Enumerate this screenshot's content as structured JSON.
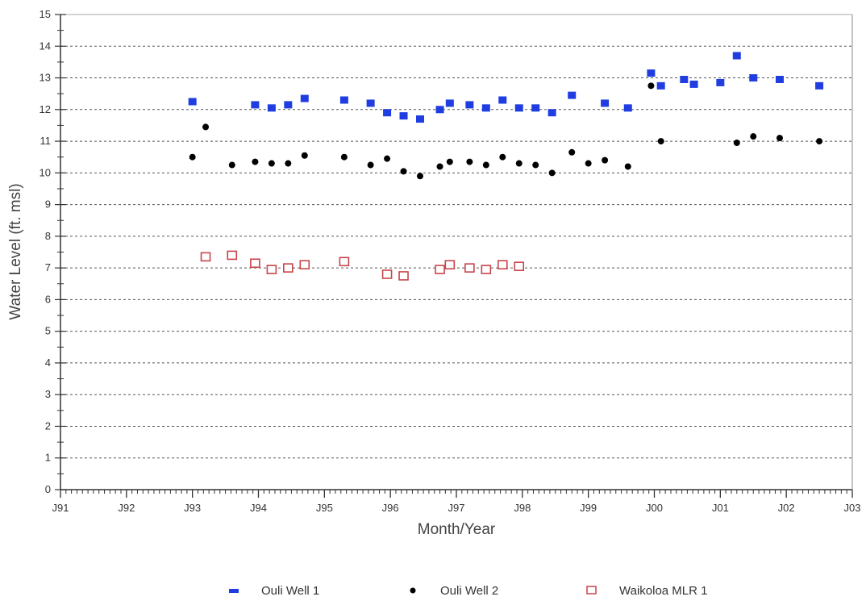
{
  "chart_data": {
    "type": "scatter",
    "title": "",
    "xlabel": "Month/Year",
    "ylabel": "Water Level (ft. msl)",
    "ylim": [
      0,
      15
    ],
    "yticks": [
      0,
      1,
      2,
      3,
      4,
      5,
      6,
      7,
      8,
      9,
      10,
      11,
      12,
      13,
      14,
      15
    ],
    "xlim": [
      1991.0,
      2003.0
    ],
    "xticks": [
      {
        "value": 1991,
        "label": "J91"
      },
      {
        "value": 1992,
        "label": "J92"
      },
      {
        "value": 1993,
        "label": "J93"
      },
      {
        "value": 1994,
        "label": "J94"
      },
      {
        "value": 1995,
        "label": "J95"
      },
      {
        "value": 1996,
        "label": "J96"
      },
      {
        "value": 1997,
        "label": "J97"
      },
      {
        "value": 1998,
        "label": "J98"
      },
      {
        "value": 1999,
        "label": "J99"
      },
      {
        "value": 2000,
        "label": "J00"
      },
      {
        "value": 2001,
        "label": "J01"
      },
      {
        "value": 2002,
        "label": "J02"
      },
      {
        "value": 2003,
        "label": "J03"
      }
    ],
    "grid": "horizontal dotted",
    "legend_position": "bottom",
    "series": [
      {
        "name": "Ouli Well 1",
        "marker": "filled-square",
        "color": "#1f3de0",
        "points": [
          [
            1993.0,
            12.25
          ],
          [
            1993.95,
            12.15
          ],
          [
            1994.2,
            12.05
          ],
          [
            1994.45,
            12.15
          ],
          [
            1994.7,
            12.35
          ],
          [
            1995.3,
            12.3
          ],
          [
            1995.7,
            12.2
          ],
          [
            1995.95,
            11.9
          ],
          [
            1996.2,
            11.8
          ],
          [
            1996.45,
            11.7
          ],
          [
            1996.75,
            12.0
          ],
          [
            1996.9,
            12.2
          ],
          [
            1997.2,
            12.15
          ],
          [
            1997.45,
            12.05
          ],
          [
            1997.7,
            12.3
          ],
          [
            1997.95,
            12.05
          ],
          [
            1998.2,
            12.05
          ],
          [
            1998.45,
            11.9
          ],
          [
            1998.75,
            12.45
          ],
          [
            1999.25,
            12.2
          ],
          [
            1999.6,
            12.05
          ],
          [
            1999.95,
            13.15
          ],
          [
            2000.1,
            12.75
          ],
          [
            2000.45,
            12.95
          ],
          [
            2000.6,
            12.8
          ],
          [
            2001.0,
            12.85
          ],
          [
            2001.25,
            13.7
          ],
          [
            2001.5,
            13.0
          ],
          [
            2001.9,
            12.95
          ],
          [
            2002.5,
            12.75
          ]
        ]
      },
      {
        "name": "Ouli Well 2",
        "marker": "filled-circle",
        "color": "#000000",
        "points": [
          [
            1993.0,
            10.5
          ],
          [
            1993.2,
            11.45
          ],
          [
            1993.6,
            10.25
          ],
          [
            1993.95,
            10.35
          ],
          [
            1994.2,
            10.3
          ],
          [
            1994.45,
            10.3
          ],
          [
            1994.7,
            10.55
          ],
          [
            1995.3,
            10.5
          ],
          [
            1995.7,
            10.25
          ],
          [
            1995.95,
            10.45
          ],
          [
            1996.2,
            10.05
          ],
          [
            1996.45,
            9.9
          ],
          [
            1996.75,
            10.2
          ],
          [
            1996.9,
            10.35
          ],
          [
            1997.2,
            10.35
          ],
          [
            1997.45,
            10.25
          ],
          [
            1997.7,
            10.5
          ],
          [
            1997.95,
            10.3
          ],
          [
            1998.2,
            10.25
          ],
          [
            1998.45,
            10.0
          ],
          [
            1998.75,
            10.65
          ],
          [
            1999.0,
            10.3
          ],
          [
            1999.25,
            10.4
          ],
          [
            1999.6,
            10.2
          ],
          [
            1999.95,
            12.75
          ],
          [
            2000.1,
            11.0
          ],
          [
            2001.25,
            10.95
          ],
          [
            2001.5,
            11.15
          ],
          [
            2001.9,
            11.1
          ],
          [
            2002.5,
            11.0
          ]
        ]
      },
      {
        "name": "Waikoloa MLR 1",
        "marker": "open-square",
        "color": "#c8444a",
        "points": [
          [
            1993.2,
            7.35
          ],
          [
            1993.6,
            7.4
          ],
          [
            1993.95,
            7.15
          ],
          [
            1994.2,
            6.95
          ],
          [
            1994.45,
            7.0
          ],
          [
            1994.7,
            7.1
          ],
          [
            1995.3,
            7.2
          ],
          [
            1995.95,
            6.8
          ],
          [
            1996.2,
            6.75
          ],
          [
            1996.75,
            6.95
          ],
          [
            1996.9,
            7.1
          ],
          [
            1997.2,
            7.0
          ],
          [
            1997.45,
            6.95
          ],
          [
            1997.7,
            7.1
          ],
          [
            1997.95,
            7.05
          ]
        ]
      }
    ]
  }
}
